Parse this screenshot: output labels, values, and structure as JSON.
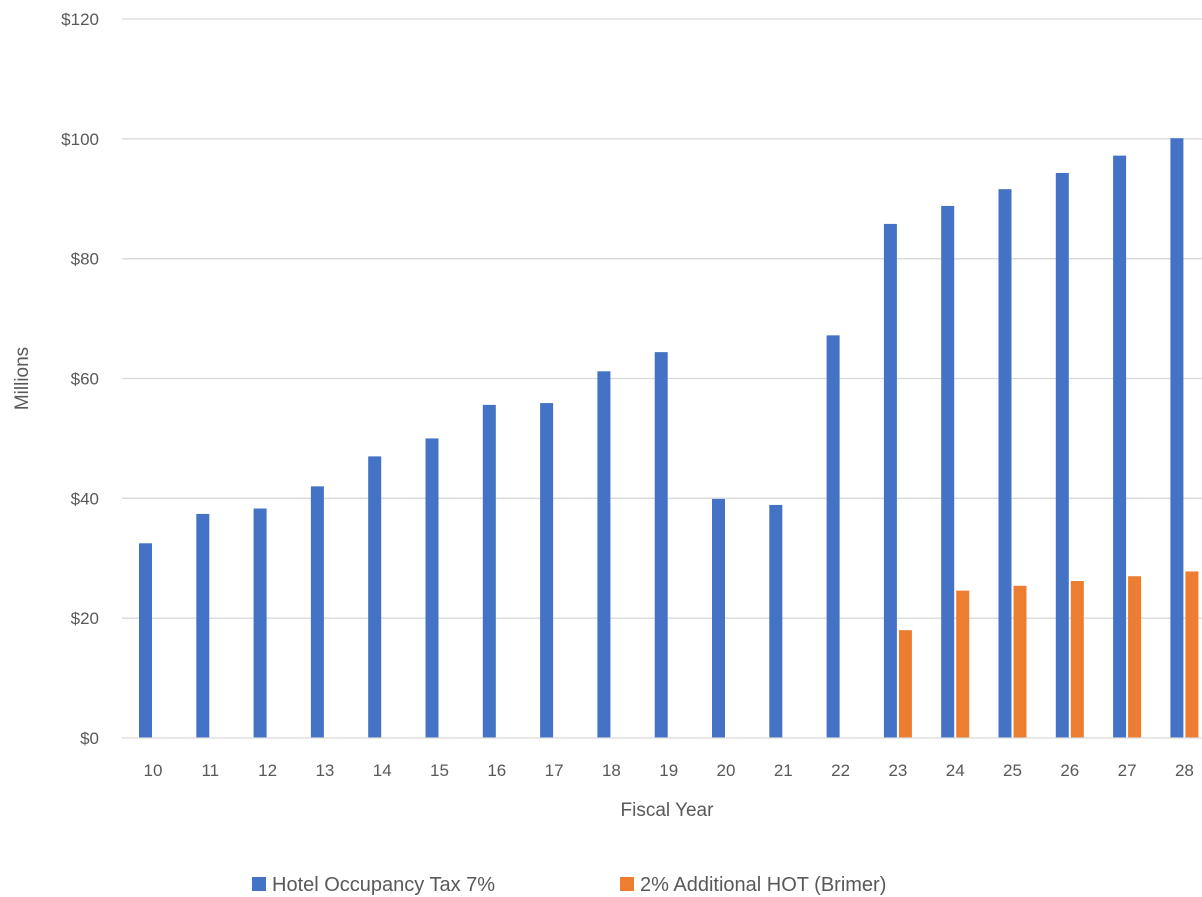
{
  "chart_data": {
    "type": "bar",
    "title": "",
    "xlabel": "Fiscal Year",
    "ylabel": "Millions",
    "ylim": [
      0,
      120
    ],
    "yticks": [
      "$0",
      "$20",
      "$40",
      "$60",
      "$80",
      "$100",
      "$120"
    ],
    "grid": true,
    "legend_position": "bottom",
    "categories": [
      "10",
      "11",
      "12",
      "13",
      "14",
      "15",
      "16",
      "17",
      "18",
      "19",
      "20",
      "21",
      "22",
      "23",
      "24",
      "25",
      "26",
      "27",
      "28"
    ],
    "series": [
      {
        "name": "Hotel Occupancy Tax 7%",
        "color": "#4472c4",
        "values": [
          32.5,
          37.4,
          38.3,
          42.0,
          47.0,
          50.0,
          55.6,
          55.9,
          61.2,
          64.4,
          39.9,
          38.9,
          67.2,
          85.8,
          88.8,
          91.6,
          94.3,
          97.2,
          100.1
        ]
      },
      {
        "name": "2% Additional HOT (Brimer)",
        "color": "#ed7d31",
        "values": [
          null,
          null,
          null,
          null,
          null,
          null,
          null,
          null,
          null,
          null,
          null,
          null,
          null,
          18.0,
          24.6,
          25.4,
          26.2,
          27.0,
          27.8
        ]
      }
    ]
  }
}
